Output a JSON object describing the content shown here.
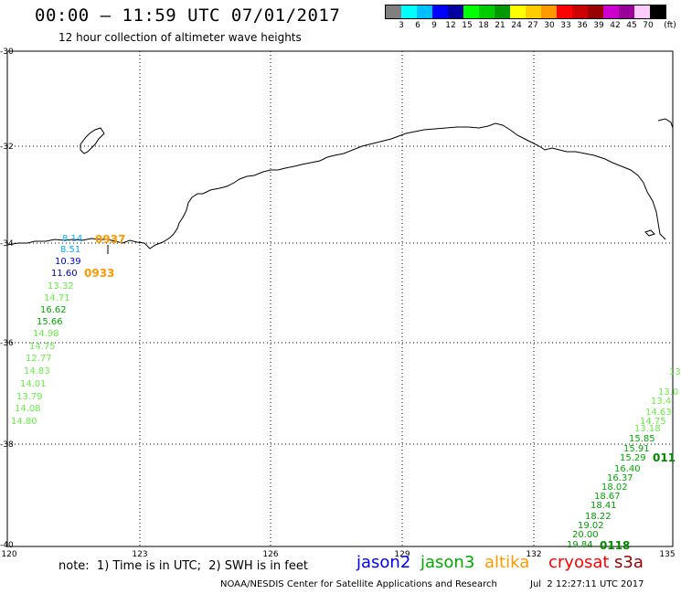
{
  "header": {
    "title": "00:00 – 11:59 UTC 07/01/2017",
    "subtitle": "12 hour collection of altimeter wave heights"
  },
  "colorbar": {
    "unit": "(ft)",
    "colors": [
      "#808080",
      "#00ffff",
      "#00bfff",
      "#0000ff",
      "#0000a0",
      "#00ff00",
      "#00cc00",
      "#009900",
      "#ffff00",
      "#ffcc00",
      "#ff9900",
      "#ff0000",
      "#cc0000",
      "#990000",
      "#cc00cc",
      "#990099",
      "#ffccff",
      "#000000"
    ],
    "ticks": [
      "3",
      "6",
      "9",
      "12",
      "15",
      "18",
      "21",
      "24",
      "27",
      "30",
      "33",
      "36",
      "39",
      "42",
      "45",
      "70"
    ]
  },
  "axes": {
    "lat_labels": [
      "-30",
      "-32",
      "-34",
      "-36",
      "-38",
      "-40"
    ],
    "lon_labels": [
      "120",
      "123",
      "126",
      "129",
      "132",
      "135"
    ]
  },
  "observations": [
    {
      "value": "8.14",
      "color": "#00aaff"
    },
    {
      "value": "8.51",
      "color": "#00aaff"
    },
    {
      "value": "10.39",
      "color": "#0000cc"
    },
    {
      "value": "11.60",
      "color": "#000099"
    },
    {
      "value": "13.32",
      "color": "#66ee44"
    },
    {
      "value": "14.71",
      "color": "#66ee44"
    },
    {
      "value": "16.62",
      "color": "#00aa00"
    },
    {
      "value": "15.66",
      "color": "#00aa00"
    },
    {
      "value": "14.98",
      "color": "#66ee44"
    },
    {
      "value": "14.75",
      "color": "#66ee44"
    },
    {
      "value": "12.77",
      "color": "#66ee44"
    },
    {
      "value": "14.83",
      "color": "#66ee44"
    },
    {
      "value": "14.01",
      "color": "#66ee44"
    },
    {
      "value": "13.79",
      "color": "#66ee44"
    },
    {
      "value": "14.08",
      "color": "#66ee44"
    },
    {
      "value": "14.80",
      "color": "#66ee44"
    },
    {
      "value": "13",
      "color": "#66ee44"
    },
    {
      "value": "13.0",
      "color": "#66ee44"
    },
    {
      "value": "13.4",
      "color": "#66ee44"
    },
    {
      "value": "14.63",
      "color": "#66ee44"
    },
    {
      "value": "14.75",
      "color": "#66ee44"
    },
    {
      "value": "13.18",
      "color": "#66ee44"
    },
    {
      "value": "15.85",
      "color": "#00aa00"
    },
    {
      "value": "15.91",
      "color": "#00aa00"
    },
    {
      "value": "15.29",
      "color": "#00aa00"
    },
    {
      "value": "16.40",
      "color": "#00aa00"
    },
    {
      "value": "16.37",
      "color": "#00aa00"
    },
    {
      "value": "18.02",
      "color": "#00aa00"
    },
    {
      "value": "18.67",
      "color": "#00aa00"
    },
    {
      "value": "18.41",
      "color": "#009900"
    },
    {
      "value": "18.22",
      "color": "#009900"
    },
    {
      "value": "19.02",
      "color": "#009900"
    },
    {
      "value": "20.00",
      "color": "#009900"
    },
    {
      "value": "19.84",
      "color": "#009900"
    }
  ],
  "pass_times": [
    {
      "value": "0937",
      "color": "#ff9900"
    },
    {
      "value": "0933",
      "color": "#ff9900"
    },
    {
      "value": "011",
      "color": "#008800"
    },
    {
      "value": "0118",
      "color": "#008800"
    }
  ],
  "footer": {
    "note": "note:  1) Time is in UTC;  2) SWH is in feet",
    "legend": [
      {
        "label": "jason2",
        "color": "#0000ff"
      },
      {
        "label": "jason3",
        "color": "#00aa00"
      },
      {
        "label": "altika",
        "color": "#ff9900"
      },
      {
        "label": "cryosat",
        "color": "#ff0000"
      },
      {
        "label": "s3a",
        "color": "#990000"
      }
    ],
    "credit": "NOAA/NESDIS Center for Satellite Applications and Research",
    "timestamp": "Jul  2 12:27:11 UTC 2017"
  }
}
